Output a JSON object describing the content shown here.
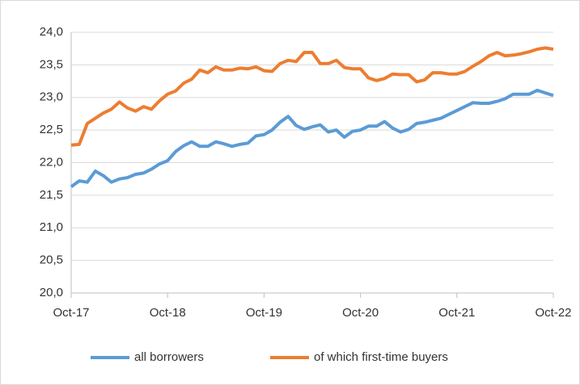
{
  "chart_data": {
    "type": "line",
    "categories": [
      "Oct-17",
      null,
      null,
      null,
      null,
      null,
      null,
      null,
      null,
      null,
      null,
      null,
      "Oct-18",
      null,
      null,
      null,
      null,
      null,
      null,
      null,
      null,
      null,
      null,
      null,
      "Oct-19",
      null,
      null,
      null,
      null,
      null,
      null,
      null,
      null,
      null,
      null,
      null,
      "Oct-20",
      null,
      null,
      null,
      null,
      null,
      null,
      null,
      null,
      null,
      null,
      null,
      "Oct-21",
      null,
      null,
      null,
      null,
      null,
      null,
      null,
      null,
      null,
      null,
      null,
      "Oct-22"
    ],
    "series": [
      {
        "name": "all borrowers",
        "color": "#5b9bd5",
        "values": [
          21.63,
          21.72,
          21.7,
          21.87,
          21.8,
          21.7,
          21.75,
          21.77,
          21.82,
          21.84,
          21.9,
          21.98,
          22.03,
          22.17,
          22.26,
          22.32,
          22.25,
          22.25,
          22.32,
          22.29,
          22.25,
          22.28,
          22.3,
          22.41,
          22.43,
          22.5,
          22.62,
          22.71,
          22.57,
          22.51,
          22.55,
          22.58,
          22.47,
          22.5,
          22.39,
          22.48,
          22.5,
          22.56,
          22.56,
          22.63,
          22.53,
          22.47,
          22.51,
          22.6,
          22.62,
          22.65,
          22.68,
          22.74,
          22.8,
          22.86,
          22.92,
          22.91,
          22.91,
          22.94,
          22.98,
          23.05,
          23.05,
          23.05,
          23.11,
          23.07,
          23.03
        ]
      },
      {
        "name": "of which first-time buyers",
        "color": "#ed7d31",
        "values": [
          22.27,
          22.28,
          22.6,
          22.68,
          22.76,
          22.82,
          22.93,
          22.84,
          22.79,
          22.86,
          22.82,
          22.95,
          23.05,
          23.1,
          23.22,
          23.28,
          23.42,
          23.38,
          23.47,
          23.42,
          23.42,
          23.45,
          23.44,
          23.47,
          23.41,
          23.4,
          23.52,
          23.57,
          23.55,
          23.69,
          23.69,
          23.52,
          23.52,
          23.57,
          23.46,
          23.44,
          23.44,
          23.3,
          23.26,
          23.29,
          23.36,
          23.35,
          23.35,
          23.24,
          23.27,
          23.38,
          23.38,
          23.36,
          23.36,
          23.4,
          23.48,
          23.55,
          23.64,
          23.69,
          23.64,
          23.65,
          23.67,
          23.7,
          23.74,
          23.76,
          23.74
        ]
      }
    ],
    "ylim": [
      20,
      24
    ],
    "yticks": [
      {
        "value": 20,
        "label": "20,0"
      },
      {
        "value": 20.5,
        "label": "20,5"
      },
      {
        "value": 21,
        "label": "21,0"
      },
      {
        "value": 21.5,
        "label": "21,5"
      },
      {
        "value": 22,
        "label": "22,0"
      },
      {
        "value": 22.5,
        "label": "22,5"
      },
      {
        "value": 23,
        "label": "23,0"
      },
      {
        "value": 23.5,
        "label": "23,5"
      },
      {
        "value": 24,
        "label": "24,0"
      }
    ],
    "grid": true,
    "legend": "bottom"
  }
}
